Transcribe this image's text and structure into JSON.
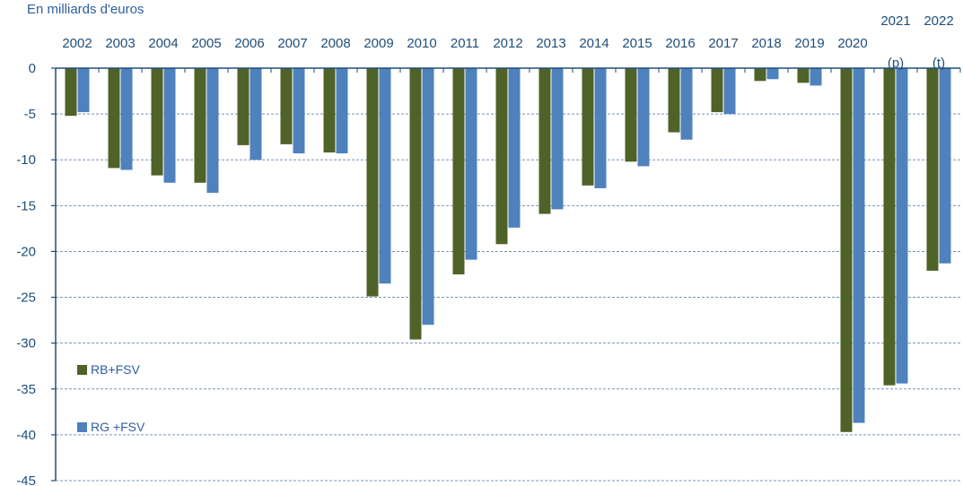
{
  "chart_data": {
    "type": "bar",
    "ylabel": "En milliards d'euros",
    "categories": [
      [
        "2002"
      ],
      [
        "2003"
      ],
      [
        "2004"
      ],
      [
        "2005"
      ],
      [
        "2006"
      ],
      [
        "2007"
      ],
      [
        "2008"
      ],
      [
        "2009"
      ],
      [
        "2010"
      ],
      [
        "2011"
      ],
      [
        "2012"
      ],
      [
        "2013"
      ],
      [
        "2014"
      ],
      [
        "2015"
      ],
      [
        "2016"
      ],
      [
        "2017"
      ],
      [
        "2018"
      ],
      [
        "2019"
      ],
      [
        "2020"
      ],
      [
        "2021",
        "(p)"
      ],
      [
        "2022",
        "(t)"
      ]
    ],
    "series": [
      {
        "name": "RB+FSV",
        "color": "#4f6228",
        "values": [
          -5.2,
          -10.9,
          -11.7,
          -12.5,
          -8.4,
          -8.3,
          -9.2,
          -24.9,
          -29.6,
          -22.5,
          -19.2,
          -15.9,
          -12.8,
          -10.2,
          -7.0,
          -4.8,
          -1.4,
          -1.6,
          -39.7,
          -34.6,
          -22.1
        ]
      },
      {
        "name": "RG +FSV",
        "color": "#4f81bd",
        "values": [
          -4.8,
          -11.1,
          -12.5,
          -13.6,
          -10.0,
          -9.3,
          -9.3,
          -23.5,
          -28.0,
          -20.9,
          -17.4,
          -15.4,
          -13.1,
          -10.7,
          -7.8,
          -5.0,
          -1.2,
          -1.9,
          -38.7,
          -34.4,
          -21.3
        ]
      }
    ],
    "ylim": [
      -45,
      0
    ],
    "yticks": [
      0,
      -5,
      -10,
      -15,
      -20,
      -25,
      -30,
      -35,
      -40,
      -45
    ],
    "grid": true,
    "legend_position": "bottom-left",
    "axis_color": "#1f4e79"
  }
}
